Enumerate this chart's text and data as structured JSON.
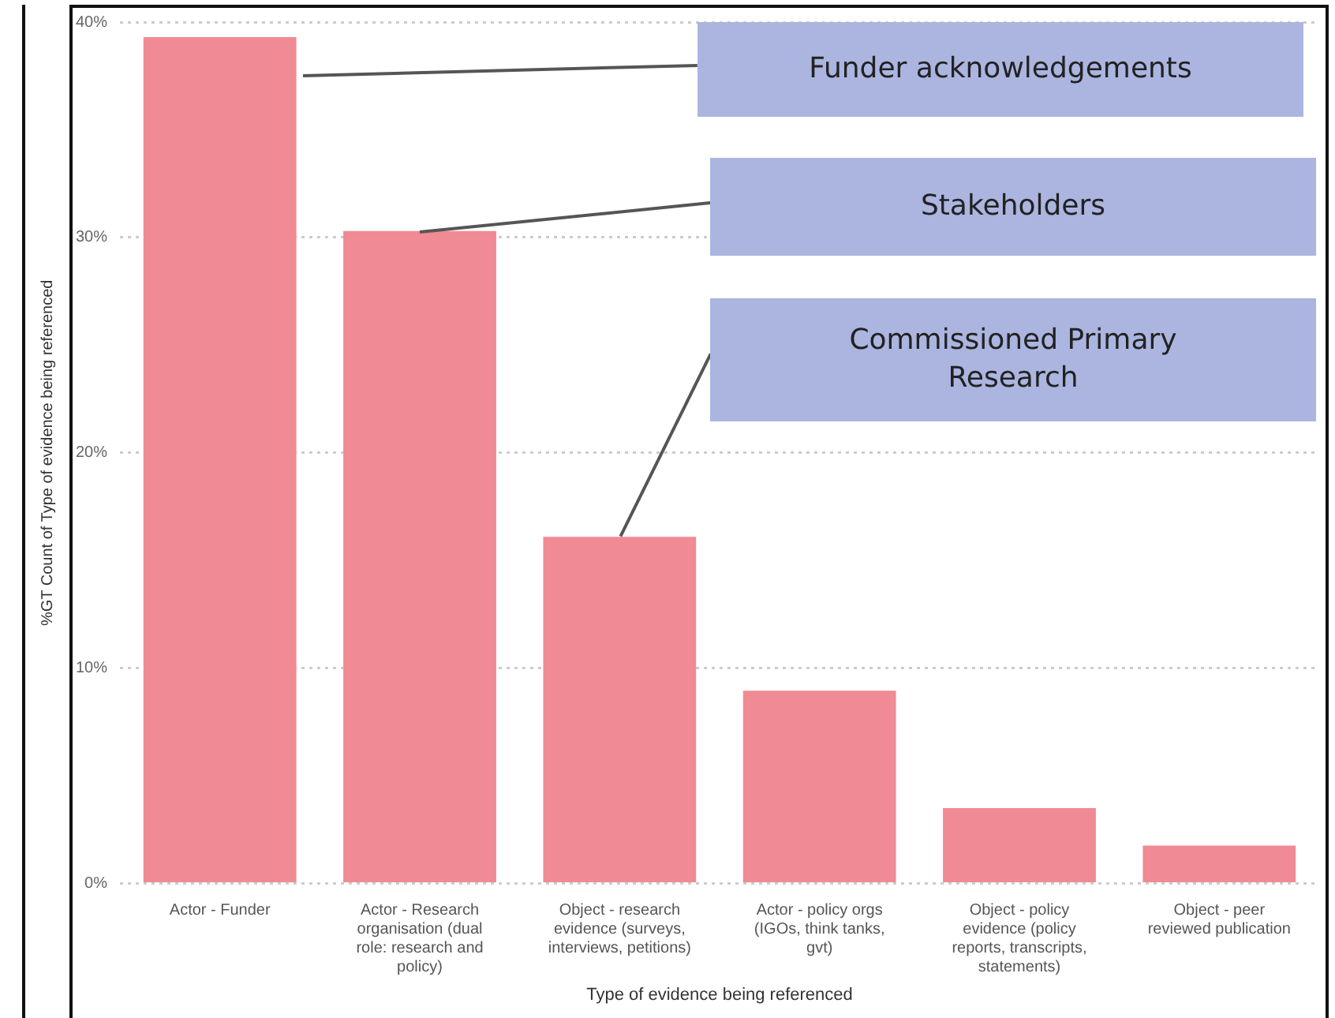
{
  "chart_data": {
    "type": "bar",
    "xlabel": "Type of evidence being referenced",
    "ylabel": "%GT Count of Type of evidence being referenced",
    "categories": [
      "Actor - Funder",
      "Actor - Research organisation (dual role: research and policy)",
      "Object - research evidence (surveys, interviews, petitions)",
      "Actor - policy orgs (IGOs, think tanks, gvt)",
      "Object - policy evidence (policy reports, transcripts, statements)",
      "Object - peer reviewed publication"
    ],
    "values": [
      39.3,
      30.3,
      16.1,
      8.95,
      3.5,
      1.76
    ],
    "color": "#f08a94",
    "ylim": [
      0,
      40
    ],
    "yticks": [
      {
        "value": 0,
        "label": "0%"
      },
      {
        "value": 10,
        "label": "10%"
      },
      {
        "value": 20,
        "label": "20%"
      },
      {
        "value": 30,
        "label": "30%"
      },
      {
        "value": 40,
        "label": "40%"
      }
    ],
    "grid": "y",
    "legend": false,
    "annotations": [
      "Funder acknowledgements",
      "Stakeholders",
      "Commissioned Primary Research"
    ]
  }
}
